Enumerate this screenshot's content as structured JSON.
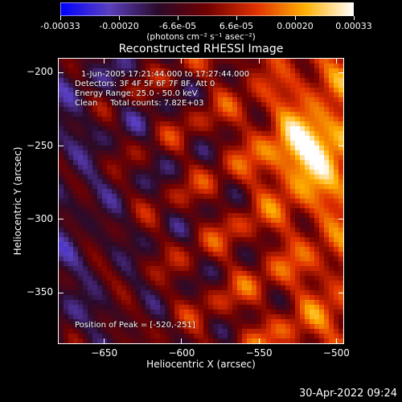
{
  "colorbar": {
    "labels": [
      "-0.00033",
      "-0.00020",
      "-6.6e-05",
      "6.6e-05",
      "0.00020",
      "0.00033"
    ],
    "units": "(photons cm⁻² s⁻¹ asec⁻²)",
    "colors": [
      "#0000ff",
      "#5a3fbf",
      "#2a0a2a",
      "#700000",
      "#e03000",
      "#ffb000",
      "#ffffff"
    ]
  },
  "chart_data": {
    "type": "heatmap",
    "title": "Reconstructed RHESSI Image",
    "xlabel": "Heliocentric X (arcsec)",
    "ylabel": "Heliocentric Y (arcsec)",
    "xlim": [
      -680,
      -495
    ],
    "ylim": [
      -385,
      -190
    ],
    "xticks": [
      -650,
      -600,
      -550,
      -500
    ],
    "yticks": [
      -200,
      -250,
      -300,
      -350
    ],
    "annotations": [
      "1-Jun-2005 17:21:44.000 to 17:27:44.000",
      "Detectors: 3F 4F 5F 6F 7F 8F, Att 0",
      "Energy Range: 25.0 - 50.0 keV",
      "Clean     Total counts: 7.82E+03"
    ],
    "peak_label": "Position of Peak = [-520,-251]",
    "peak": [
      -520,
      -251
    ],
    "value_range": [
      -0.00033,
      0.00033
    ]
  },
  "timestamp": "30-Apr-2022 09:24"
}
